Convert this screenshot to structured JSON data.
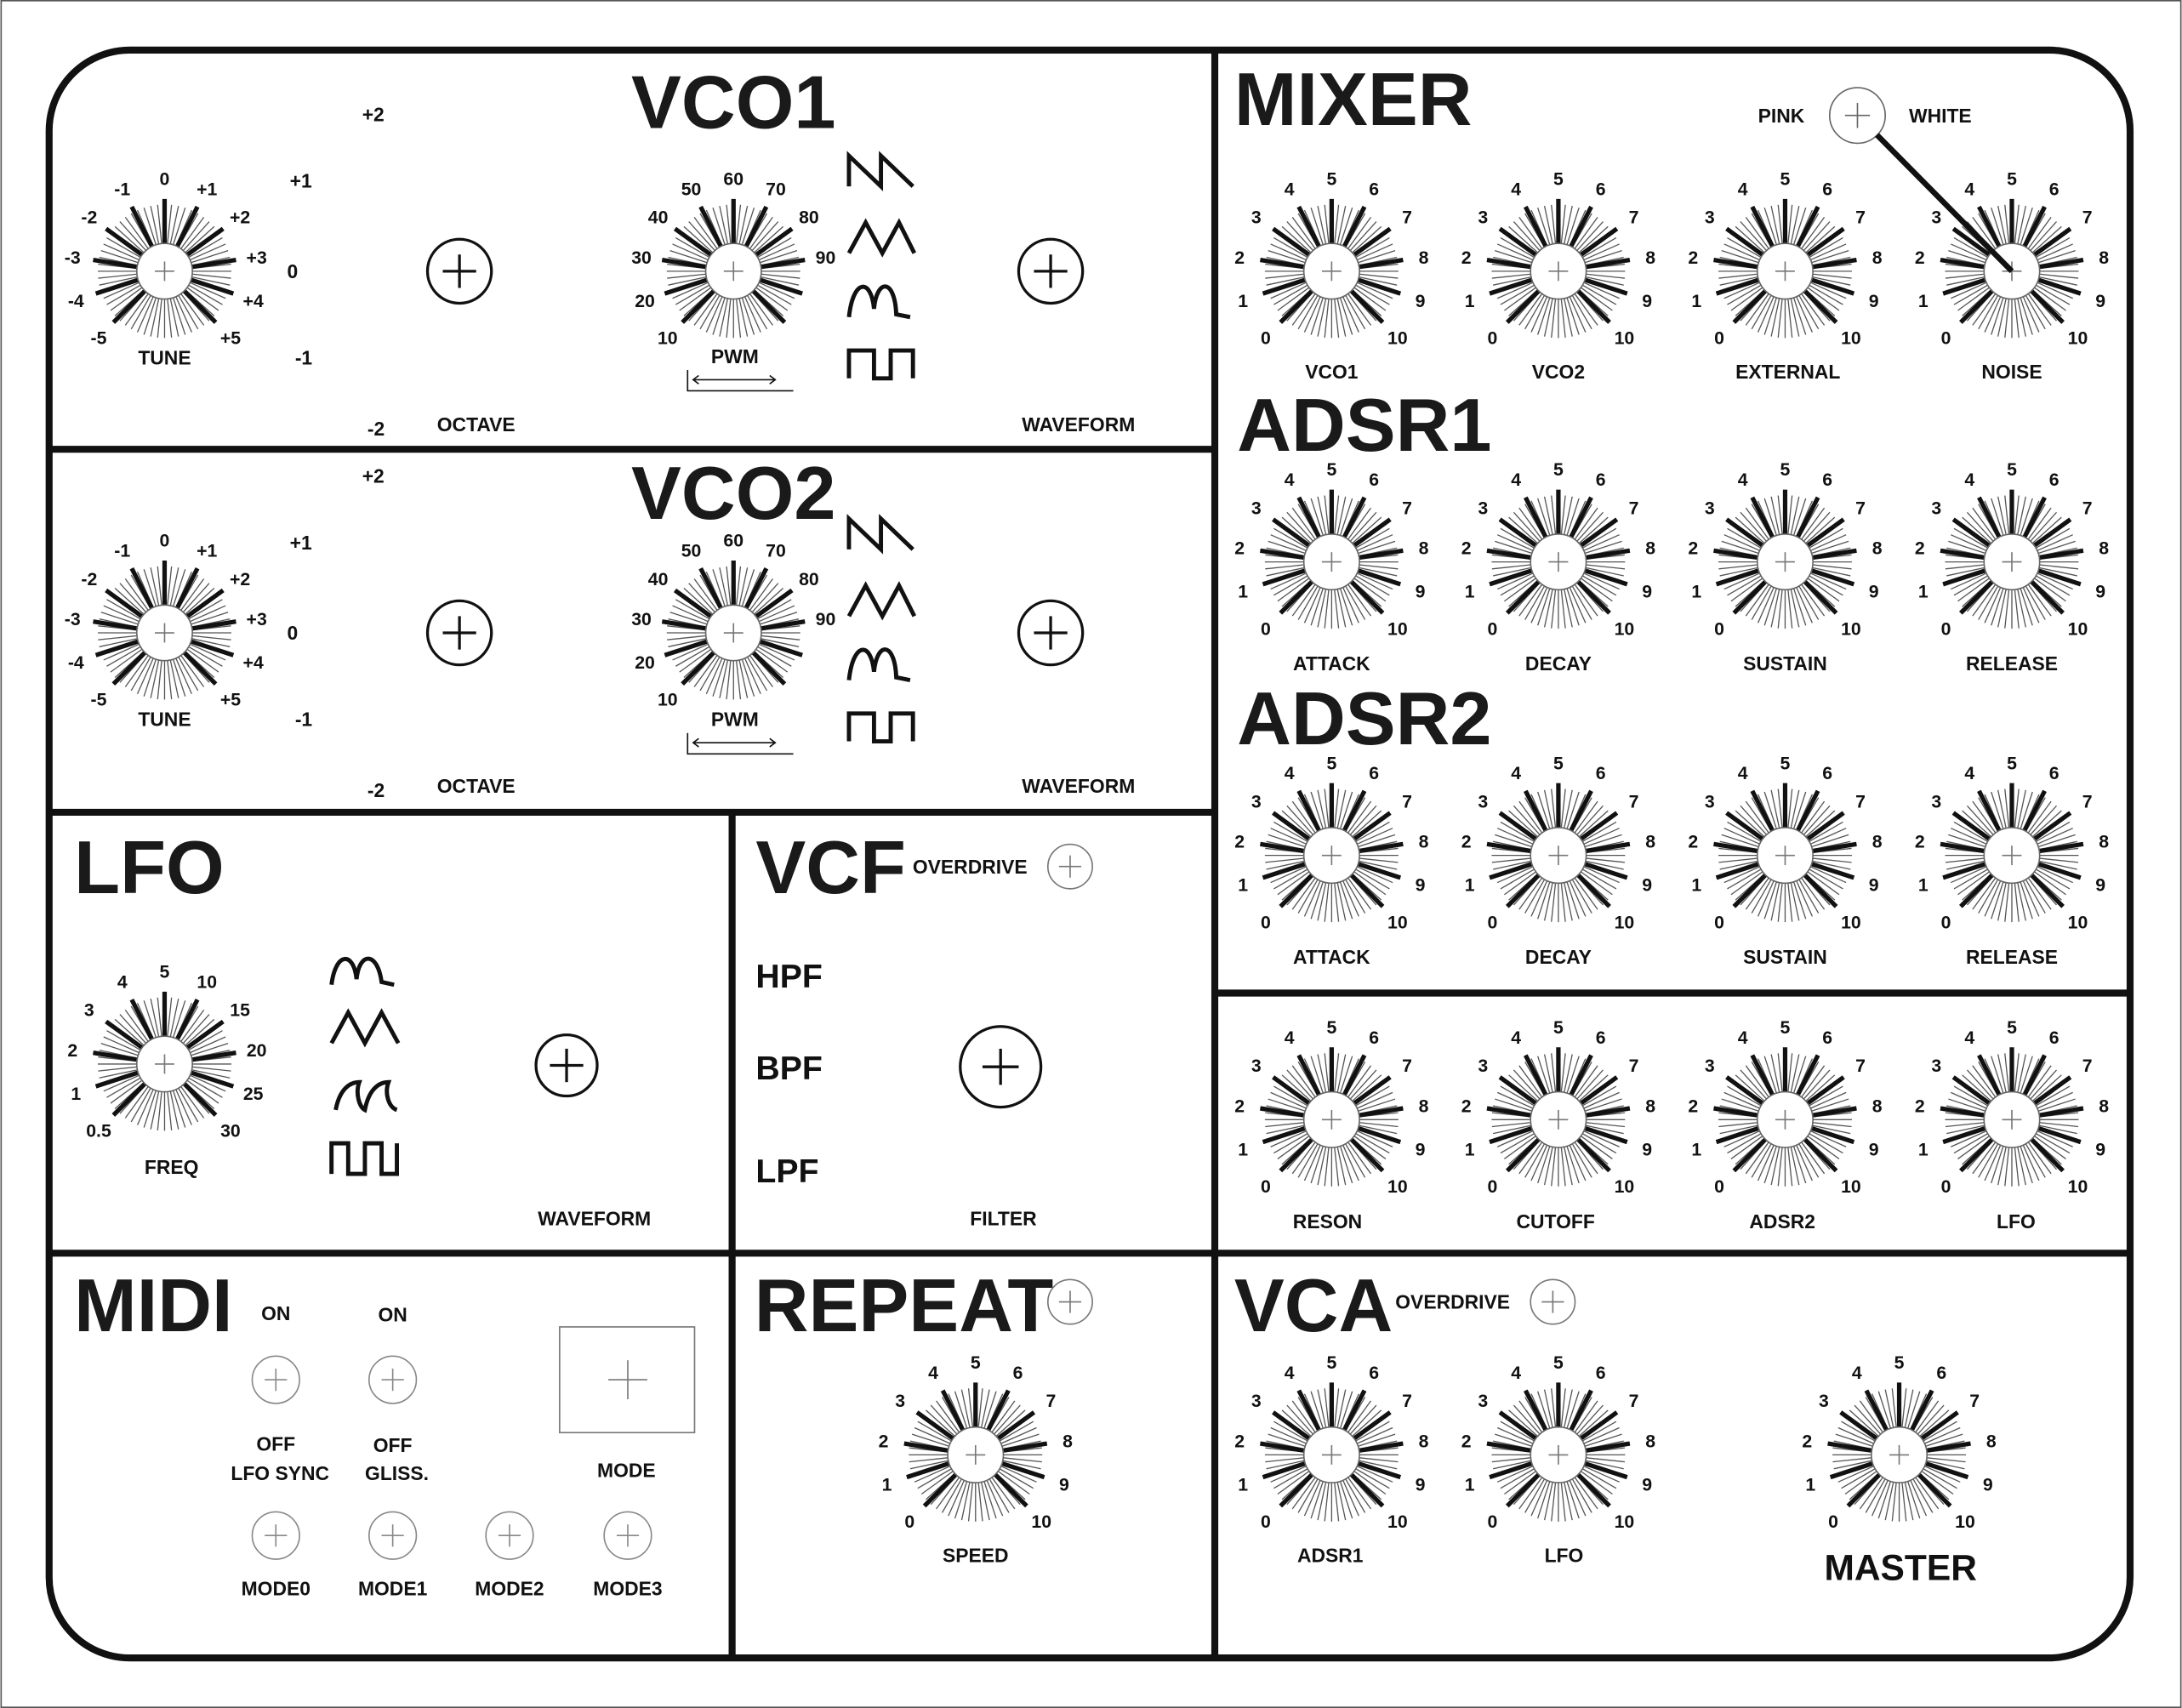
{
  "sections": {
    "vco1": "VCO1",
    "vco2": "VCO2",
    "mixer": "MIXER",
    "adsr1": "ADSR1",
    "adsr2": "ADSR2",
    "lfo": "LFO",
    "vcf": "VCF",
    "midi": "MIDI",
    "repeat": "REPEAT",
    "vca": "VCA"
  },
  "vco1": {
    "tune": {
      "label": "TUNE",
      "scale": [
        "-5",
        "-4",
        "-3",
        "-2",
        "-1",
        "0",
        "+1",
        "+2",
        "+3",
        "+4",
        "+5"
      ]
    },
    "octave": {
      "label": "OCTAVE",
      "values": [
        "+2",
        "+1",
        "0",
        "-1",
        "-2"
      ]
    },
    "pwm": {
      "label": "PWM",
      "scale": [
        "10",
        "20",
        "30",
        "40",
        "50",
        "60",
        "70",
        "80",
        "90"
      ]
    },
    "waveform_label": "WAVEFORM",
    "waveform_icons": [
      "sawtooth-wave",
      "triangle-wave",
      "sine-wave",
      "pulse-wave"
    ]
  },
  "vco2": {
    "tune": {
      "label": "TUNE",
      "scale": [
        "-5",
        "-4",
        "-3",
        "-2",
        "-1",
        "0",
        "+1",
        "+2",
        "+3",
        "+4",
        "+5"
      ]
    },
    "octave": {
      "label": "OCTAVE",
      "values": [
        "+2",
        "+1",
        "0",
        "-1",
        "-2"
      ]
    },
    "pwm": {
      "label": "PWM",
      "scale": [
        "10",
        "20",
        "30",
        "40",
        "50",
        "60",
        "70",
        "80",
        "90"
      ]
    },
    "waveform_label": "WAVEFORM",
    "waveform_icons": [
      "sawtooth-wave",
      "triangle-wave",
      "sine-wave",
      "pulse-wave"
    ]
  },
  "mixer": {
    "noise_type": {
      "left": "PINK",
      "right": "WHITE"
    },
    "knobs": [
      {
        "label": "VCO1",
        "scale": [
          "0",
          "1",
          "2",
          "3",
          "4",
          "5",
          "6",
          "7",
          "8",
          "9",
          "10"
        ]
      },
      {
        "label": "VCO2",
        "scale": [
          "0",
          "1",
          "2",
          "3",
          "4",
          "5",
          "6",
          "7",
          "8",
          "9",
          "10"
        ]
      },
      {
        "label": "EXTERNAL",
        "scale": [
          "0",
          "1",
          "2",
          "3",
          "4",
          "5",
          "6",
          "7",
          "8",
          "9",
          "10"
        ]
      },
      {
        "label": "NOISE",
        "scale": [
          "0",
          "1",
          "2",
          "3",
          "4",
          "5",
          "6",
          "7",
          "8",
          "9",
          "10"
        ]
      }
    ]
  },
  "adsr1": {
    "knobs": [
      {
        "label": "ATTACK",
        "scale": [
          "0",
          "1",
          "2",
          "3",
          "4",
          "5",
          "6",
          "7",
          "8",
          "9",
          "10"
        ]
      },
      {
        "label": "DECAY",
        "scale": [
          "0",
          "1",
          "2",
          "3",
          "4",
          "5",
          "6",
          "7",
          "8",
          "9",
          "10"
        ]
      },
      {
        "label": "SUSTAIN",
        "scale": [
          "0",
          "1",
          "2",
          "3",
          "4",
          "5",
          "6",
          "7",
          "8",
          "9",
          "10"
        ]
      },
      {
        "label": "RELEASE",
        "scale": [
          "0",
          "1",
          "2",
          "3",
          "4",
          "5",
          "6",
          "7",
          "8",
          "9",
          "10"
        ]
      }
    ]
  },
  "adsr2": {
    "knobs": [
      {
        "label": "ATTACK",
        "scale": [
          "0",
          "1",
          "2",
          "3",
          "4",
          "5",
          "6",
          "7",
          "8",
          "9",
          "10"
        ]
      },
      {
        "label": "DECAY",
        "scale": [
          "0",
          "1",
          "2",
          "3",
          "4",
          "5",
          "6",
          "7",
          "8",
          "9",
          "10"
        ]
      },
      {
        "label": "SUSTAIN",
        "scale": [
          "0",
          "1",
          "2",
          "3",
          "4",
          "5",
          "6",
          "7",
          "8",
          "9",
          "10"
        ]
      },
      {
        "label": "RELEASE",
        "scale": [
          "0",
          "1",
          "2",
          "3",
          "4",
          "5",
          "6",
          "7",
          "8",
          "9",
          "10"
        ]
      }
    ]
  },
  "filter_mod": {
    "knobs": [
      {
        "label": "RESON",
        "scale": [
          "0",
          "1",
          "2",
          "3",
          "4",
          "5",
          "6",
          "7",
          "8",
          "9",
          "10"
        ]
      },
      {
        "label": "CUTOFF",
        "scale": [
          "0",
          "1",
          "2",
          "3",
          "4",
          "5",
          "6",
          "7",
          "8",
          "9",
          "10"
        ]
      },
      {
        "label": "ADSR2",
        "scale": [
          "0",
          "1",
          "2",
          "3",
          "4",
          "5",
          "6",
          "7",
          "8",
          "9",
          "10"
        ]
      },
      {
        "label": "LFO",
        "scale": [
          "0",
          "1",
          "2",
          "3",
          "4",
          "5",
          "6",
          "7",
          "8",
          "9",
          "10"
        ]
      }
    ]
  },
  "lfo": {
    "freq": {
      "label": "FREQ",
      "scale": [
        "0.5",
        "1",
        "2",
        "3",
        "4",
        "5",
        "10",
        "15",
        "20",
        "25",
        "30"
      ]
    },
    "waveform_label": "WAVEFORM",
    "waveform_icons": [
      "sine-wave",
      "triangle-wave",
      "shark-fin-wave",
      "square-wave"
    ]
  },
  "vcf": {
    "overdrive": "OVERDRIVE",
    "modes": [
      "HPF",
      "BPF",
      "LPF"
    ],
    "filter_label": "FILTER"
  },
  "midi": {
    "lfo_sync": {
      "on": "ON",
      "off": "OFF",
      "label": "LFO SYNC"
    },
    "gliss": {
      "on": "ON",
      "off": "OFF",
      "label": "GLISS."
    },
    "mode_label": "MODE",
    "modes": [
      "MODE0",
      "MODE1",
      "MODE2",
      "MODE3"
    ]
  },
  "repeat": {
    "speed": {
      "label": "SPEED",
      "scale": [
        "0",
        "1",
        "2",
        "3",
        "4",
        "5",
        "6",
        "7",
        "8",
        "9",
        "10"
      ]
    }
  },
  "vca": {
    "overdrive": "OVERDRIVE",
    "knobs": [
      {
        "label": "ADSR1",
        "scale": [
          "0",
          "1",
          "2",
          "3",
          "4",
          "5",
          "6",
          "7",
          "8",
          "9",
          "10"
        ]
      },
      {
        "label": "LFO",
        "scale": [
          "0",
          "1",
          "2",
          "3",
          "4",
          "5",
          "6",
          "7",
          "8",
          "9",
          "10"
        ]
      }
    ],
    "master": {
      "label": "MASTER",
      "scale": [
        "0",
        "1",
        "2",
        "3",
        "4",
        "5",
        "6",
        "7",
        "8",
        "9",
        "10"
      ]
    }
  }
}
